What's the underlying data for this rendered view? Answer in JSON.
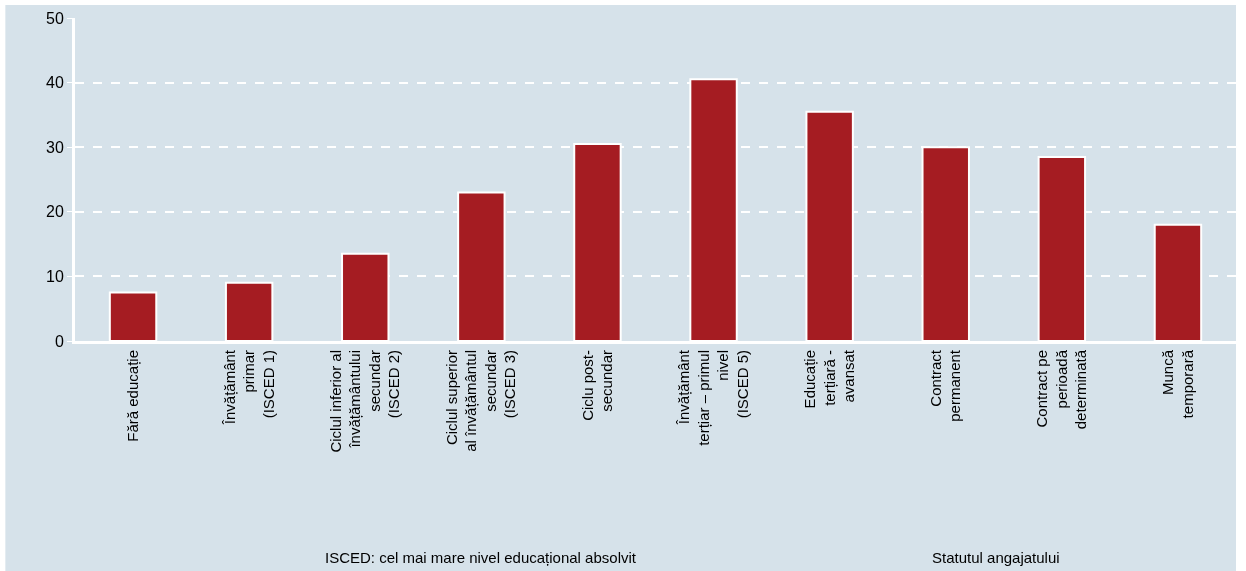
{
  "chart_data": {
    "type": "bar",
    "categories": [
      "Fără educație",
      "Învățământ\nprimar\n(ISCED 1)",
      "Ciclul inferior al\nînvățământului\nsecundar\n(ISCED 2)",
      "Ciclul superior\nal învățământul\nsecundar\n(ISCED 3)",
      "Ciclu post-\nsecundar",
      "Învățământ\nterțiar – primul\nnivel\n(ISCED 5)",
      "Educație\nterțiară -\navansat",
      "Contract\npermanent",
      "Contract pe\nperioadă\ndeterminată",
      "Muncă\ntemporară"
    ],
    "values": [
      7.5,
      9,
      13.5,
      23,
      30.5,
      40.5,
      35.5,
      30,
      28.5,
      18
    ],
    "color": "#a51c22",
    "ylim": [
      0,
      50
    ],
    "yticks": [
      0,
      10,
      20,
      30,
      40,
      50
    ],
    "grid": "y",
    "annotations": [
      "ISCED: cel mai mare nivel educațional absolvit",
      "Statutul angajatului"
    ]
  }
}
